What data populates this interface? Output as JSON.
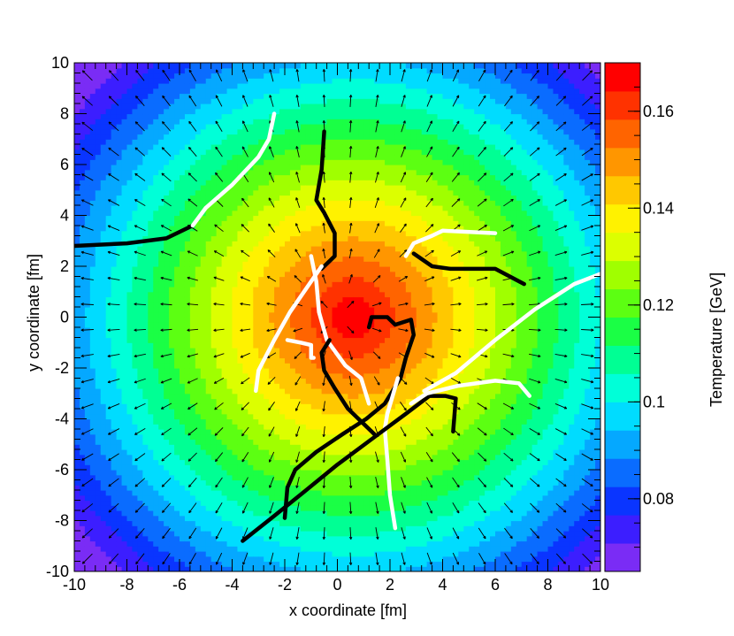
{
  "chart_data": {
    "type": "heatmap",
    "title": "",
    "xlabel": "x coordinate [fm]",
    "ylabel": "y coordinate [fm]",
    "zlabel": "Temperature [GeV]",
    "xlim": [
      -10,
      10
    ],
    "ylim": [
      -10,
      10
    ],
    "zlim": [
      0.065,
      0.17
    ],
    "x_ticks": [
      "-10",
      "-8",
      "-6",
      "-4",
      "-2",
      "0",
      "2",
      "4",
      "6",
      "8",
      "10"
    ],
    "y_ticks": [
      "-10",
      "-8",
      "-6",
      "-4",
      "-2",
      "0",
      "2",
      "4",
      "6",
      "8",
      "10"
    ],
    "z_ticks": [
      "0.08",
      "0.1",
      "0.12",
      "0.14",
      "0.16"
    ],
    "field": {
      "description": "radially symmetric temperature, peak at center",
      "center": [
        0.6,
        0.0
      ],
      "peak_temperature": 0.17,
      "temperature_at_r14": 0.065
    },
    "flow_arrows": {
      "grid_spacing": 1.0,
      "direction": "radial-outward"
    },
    "palette": [
      "#7a2cf5",
      "#3c1eff",
      "#0a35ff",
      "#0a6cff",
      "#05a8ff",
      "#00dcff",
      "#00ffd8",
      "#00ff94",
      "#1aff45",
      "#5cff12",
      "#a0ff00",
      "#dcff00",
      "#fff200",
      "#ffc800",
      "#ff9600",
      "#ff6400",
      "#ff3200",
      "#ff0000"
    ],
    "trajectories": [
      {
        "color": "#000000",
        "points": [
          [
            -10,
            2.8
          ],
          [
            -8,
            2.9
          ],
          [
            -6.5,
            3.1
          ],
          [
            -5.5,
            3.6
          ]
        ]
      },
      {
        "color": "#ffffff",
        "points": [
          [
            -5.5,
            3.6
          ],
          [
            -5,
            4.3
          ],
          [
            -4,
            5.2
          ],
          [
            -3,
            6.3
          ],
          [
            -2.6,
            7.0
          ],
          [
            -2.4,
            8.0
          ]
        ]
      },
      {
        "color": "#000000",
        "points": [
          [
            -0.5,
            7.3
          ],
          [
            -0.6,
            5.8
          ],
          [
            -0.8,
            4.6
          ],
          [
            -0.5,
            4.1
          ],
          [
            -0.1,
            3.3
          ],
          [
            -0.1,
            2.4
          ],
          [
            -0.6,
            1.9
          ]
        ]
      },
      {
        "color": "#ffffff",
        "points": [
          [
            -0.6,
            2.0
          ],
          [
            -1.2,
            1.1
          ],
          [
            -1.8,
            0.2
          ],
          [
            -2.4,
            -0.9
          ],
          [
            -3.0,
            -2.1
          ],
          [
            -3.1,
            -2.9
          ]
        ]
      },
      {
        "color": "#ffffff",
        "points": [
          [
            -1.0,
            2.4
          ],
          [
            -0.8,
            1.4
          ],
          [
            -0.7,
            0.2
          ],
          [
            -0.4,
            -0.9
          ],
          [
            0.3,
            -1.9
          ],
          [
            0.9,
            -2.4
          ],
          [
            1.2,
            -3.4
          ]
        ]
      },
      {
        "color": "#ffffff",
        "points": [
          [
            -1.9,
            -0.9
          ],
          [
            -1.4,
            -1.0
          ],
          [
            -1.0,
            -1.1
          ],
          [
            -1.0,
            -1.6
          ],
          [
            -0.9,
            -1.6
          ]
        ]
      },
      {
        "color": "#000000",
        "points": [
          [
            -0.3,
            -0.9
          ],
          [
            -0.6,
            -1.4
          ],
          [
            -0.5,
            -2.1
          ],
          [
            -0.1,
            -2.8
          ],
          [
            0.4,
            -3.6
          ],
          [
            1.0,
            -4.2
          ],
          [
            1.4,
            -4.6
          ]
        ]
      },
      {
        "color": "#000000",
        "points": [
          [
            1.2,
            -0.4
          ],
          [
            1.3,
            0.0
          ],
          [
            1.9,
            0.0
          ],
          [
            2.2,
            -0.3
          ],
          [
            2.8,
            -0.1
          ],
          [
            2.9,
            -0.7
          ],
          [
            2.6,
            -1.6
          ],
          [
            2.4,
            -2.4
          ],
          [
            1.8,
            -3.4
          ],
          [
            1.1,
            -4.0
          ],
          [
            0.2,
            -4.6
          ],
          [
            -0.8,
            -5.3
          ],
          [
            -1.6,
            -6.0
          ],
          [
            -1.9,
            -6.7
          ],
          [
            -2.0,
            -7.9
          ]
        ]
      },
      {
        "color": "#ffffff",
        "points": [
          [
            2.2,
            -8.3
          ],
          [
            2.0,
            -7.0
          ],
          [
            1.9,
            -5.6
          ],
          [
            1.8,
            -4.4
          ],
          [
            1.9,
            -3.8
          ],
          [
            2.1,
            -3.1
          ],
          [
            2.3,
            -2.4
          ]
        ]
      },
      {
        "color": "#000000",
        "points": [
          [
            -3.6,
            -8.8
          ],
          [
            -2.5,
            -7.9
          ],
          [
            -1.3,
            -6.9
          ],
          [
            0.0,
            -5.8
          ],
          [
            1.3,
            -4.8
          ],
          [
            2.6,
            -3.8
          ],
          [
            3.5,
            -3.1
          ],
          [
            4.1,
            -3.1
          ],
          [
            4.5,
            -3.2
          ],
          [
            4.4,
            -4.5
          ]
        ]
      },
      {
        "color": "#ffffff",
        "points": [
          [
            2.8,
            -3.4
          ],
          [
            3.4,
            -3.0
          ],
          [
            4.6,
            -2.7
          ],
          [
            6.0,
            -2.5
          ],
          [
            6.9,
            -2.6
          ],
          [
            7.3,
            -3.1
          ]
        ]
      },
      {
        "color": "#ffffff",
        "points": [
          [
            3.3,
            -2.9
          ],
          [
            4.5,
            -2.2
          ],
          [
            6.0,
            -0.9
          ],
          [
            7.5,
            0.3
          ],
          [
            9.0,
            1.3
          ],
          [
            10,
            1.7
          ]
        ]
      },
      {
        "color": "#ffffff",
        "points": [
          [
            2.6,
            2.4
          ],
          [
            2.9,
            2.9
          ],
          [
            3.6,
            3.2
          ],
          [
            4.0,
            3.4
          ],
          [
            6.0,
            3.3
          ]
        ]
      },
      {
        "color": "#000000",
        "points": [
          [
            2.9,
            2.5
          ],
          [
            3.6,
            2.0
          ],
          [
            4.3,
            1.9
          ],
          [
            5.0,
            1.9
          ],
          [
            6.0,
            1.9
          ],
          [
            7.1,
            1.3
          ]
        ]
      }
    ]
  }
}
